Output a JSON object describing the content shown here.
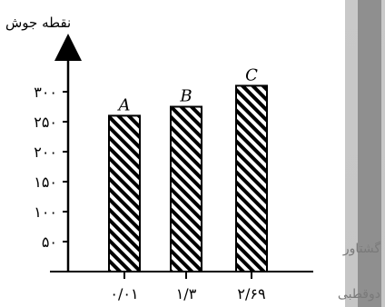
{
  "chart_data": {
    "type": "bar",
    "title": "",
    "ylabel": "نقطه جوش",
    "xlabel": "",
    "categories": [
      "۰/۰۱",
      "۱/۳",
      "۲/۶۹"
    ],
    "bar_labels": [
      "A",
      "B",
      "C"
    ],
    "values": [
      260,
      275,
      310
    ],
    "yticks": [
      50,
      100,
      150,
      200,
      250,
      300
    ],
    "ytick_labels": [
      "۵۰",
      "۱۰۰",
      "۱۵۰",
      "۲۰۰",
      "۲۵۰",
      "۳۰۰"
    ],
    "ylim": [
      0,
      360
    ],
    "grid": false,
    "bar_fill": "diagonal-hatch",
    "colors": {
      "bar_hatch": "#000000",
      "bar_bg": "#ffffff",
      "axis": "#000000"
    }
  },
  "side_panel": {
    "text_1": "گشتاور",
    "text_2": "دوقطبی",
    "bg_color": "#c9c9c9",
    "strip_color": "#8f8f8f"
  }
}
